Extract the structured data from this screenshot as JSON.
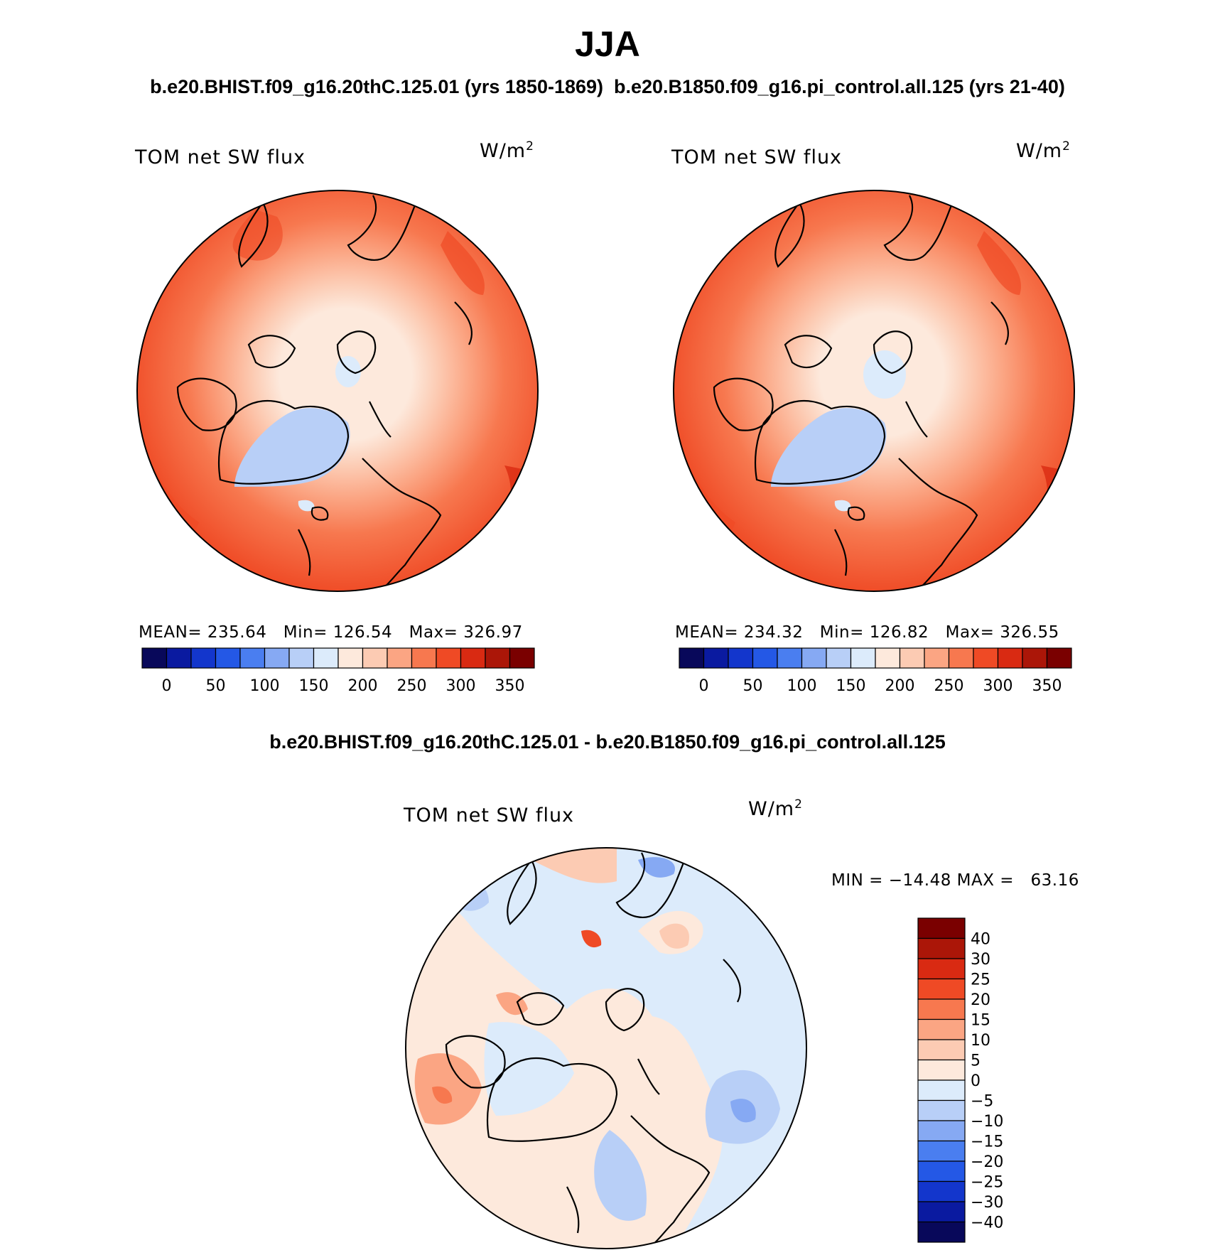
{
  "title": "JJA",
  "subtitle": "b.e20.BHIST.f09_g16.20thC.125.01 (yrs 1850-1869)  b.e20.B1850.f09_g16.pi_control.all.125 (yrs 21-40)",
  "diff_title": "b.e20.BHIST.f09_g16.20thC.125.01 - b.e20.B1850.f09_g16.pi_control.all.125",
  "panels": [
    {
      "variable": "TOM net SW flux",
      "units_base": "W/m",
      "units_exp": "2",
      "stats": "MEAN= 235.64   Min= 126.54   Max= 326.97"
    },
    {
      "variable": "TOM net SW flux",
      "units_base": "W/m",
      "units_exp": "2",
      "stats": "MEAN= 234.32   Min= 126.82   Max= 326.55"
    }
  ],
  "diff_panel": {
    "variable": "TOM net SW flux",
    "units_base": "W/m",
    "units_exp": "2",
    "stats": "MIN = −14.48 MAX =   63.16"
  },
  "colorbar_abs": {
    "colors": [
      "#08085a",
      "#0a1aa0",
      "#1336cc",
      "#2458e6",
      "#4a7ef0",
      "#86a9f3",
      "#b8cff7",
      "#dcebfb",
      "#fde9dc",
      "#fccbb3",
      "#fba583",
      "#f7784f",
      "#ef4a25",
      "#d92a12",
      "#ab1608",
      "#7a0000"
    ],
    "tick_labels": [
      "0",
      "50",
      "100",
      "150",
      "200",
      "250",
      "300",
      "350"
    ]
  },
  "colorbar_diff": {
    "colors": [
      "#7a0000",
      "#ab1608",
      "#d92a12",
      "#ef4a25",
      "#f7784f",
      "#fba583",
      "#fccbb3",
      "#fde9dc",
      "#dcebfb",
      "#b8cff7",
      "#86a9f3",
      "#4a7ef0",
      "#2458e6",
      "#1336cc",
      "#0a1aa0",
      "#08085a"
    ],
    "tick_labels": [
      "40",
      "30",
      "25",
      "20",
      "15",
      "10",
      "5",
      "0",
      "−5",
      "−10",
      "−15",
      "−20",
      "−25",
      "−30",
      "−40"
    ]
  }
}
